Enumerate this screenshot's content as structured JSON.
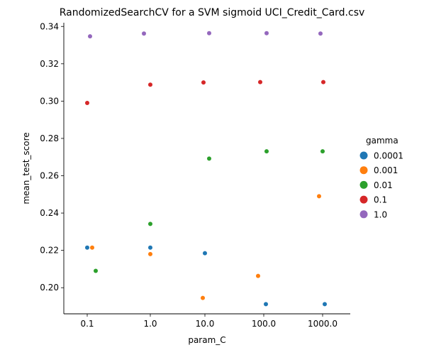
{
  "chart_data": {
    "type": "scatter",
    "title": "RandomizedSearchCV for a SVM sigmoid UCI_Credit_Card.csv",
    "xlabel": "param_C",
    "ylabel": "mean_test_score",
    "categories": [
      "0.1",
      "1.0",
      "10.0",
      "100.0",
      "1000.0"
    ],
    "y_ticks": [
      "0.20",
      "0.22",
      "0.24",
      "0.26",
      "0.28",
      "0.30",
      "0.32",
      "0.34"
    ],
    "ylim": [
      0.186,
      0.342
    ],
    "grid": false,
    "legend": {
      "title": "gamma",
      "placement": "right"
    },
    "series": [
      {
        "name": "0.0001",
        "color": "#1f77b4",
        "points": [
          {
            "x": "0.1",
            "y": 0.2215
          },
          {
            "x": "1.0",
            "y": 0.2215
          },
          {
            "x": "10.0",
            "y": 0.2185
          },
          {
            "x": "100.0",
            "y": 0.1912
          },
          {
            "x": "1000.0",
            "y": 0.1912
          }
        ]
      },
      {
        "name": "0.001",
        "color": "#ff7f0e",
        "points": [
          {
            "x": "0.1",
            "y": 0.2215
          },
          {
            "x": "1.0",
            "y": 0.218
          },
          {
            "x": "10.0",
            "y": 0.1945
          },
          {
            "x": "100.0",
            "y": 0.2063
          },
          {
            "x": "1000.0",
            "y": 0.249
          }
        ]
      },
      {
        "name": "0.01",
        "color": "#2ca02c",
        "points": [
          {
            "x": "0.1",
            "y": 0.209
          },
          {
            "x": "1.0",
            "y": 0.2342
          },
          {
            "x": "10.0",
            "y": 0.2692
          },
          {
            "x": "100.0",
            "y": 0.2731
          },
          {
            "x": "1000.0",
            "y": 0.2731
          }
        ]
      },
      {
        "name": "0.1",
        "color": "#d62728",
        "points": [
          {
            "x": "0.1",
            "y": 0.299
          },
          {
            "x": "1.0",
            "y": 0.3088
          },
          {
            "x": "10.0",
            "y": 0.31
          },
          {
            "x": "100.0",
            "y": 0.3102
          },
          {
            "x": "1000.0",
            "y": 0.3102
          }
        ]
      },
      {
        "name": "1.0",
        "color": "#9467bd",
        "points": [
          {
            "x": "0.1",
            "y": 0.3347
          },
          {
            "x": "1.0",
            "y": 0.3362
          },
          {
            "x": "10.0",
            "y": 0.3364
          },
          {
            "x": "100.0",
            "y": 0.3364
          },
          {
            "x": "1000.0",
            "y": 0.3362
          }
        ]
      }
    ]
  }
}
